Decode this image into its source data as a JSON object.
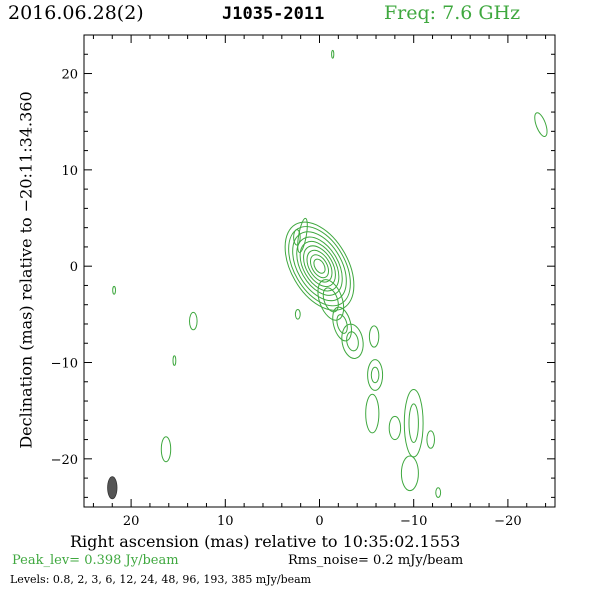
{
  "header": {
    "date": "2016.06.28(2)",
    "source": "J1035-2011",
    "frequency": "Freq: 7.6 GHz"
  },
  "footer": {
    "peak": "Peak_lev=  0.398 Jy/beam",
    "rms": "Rms_noise=  0.2 mJy/beam",
    "levels": "Levels: 0.8,   2,   3,   6,  12,  24,  48,  96, 193, 385 mJy/beam"
  },
  "colors": {
    "contour": "#3fa83f",
    "beam": "#555555",
    "text": "#000000"
  },
  "chart_data": {
    "type": "contour",
    "xlabel": "Right ascension (mas) relative to 10:35:02.1553",
    "ylabel": "Declination (mas) relative to −20:11:34.360",
    "xlim": [
      25,
      -25
    ],
    "ylim": [
      -25,
      24
    ],
    "xticks": [
      20,
      10,
      0,
      -10,
      -20
    ],
    "xtick_labels": [
      "20",
      "10",
      "0",
      "−10",
      "−20"
    ],
    "yticks": [
      20,
      10,
      0,
      -10,
      -20
    ],
    "ytick_labels": [
      "20",
      "10",
      "0",
      "−10",
      "−20"
    ],
    "grid": false,
    "peak_jy_per_beam": 0.398,
    "rms_mjy_per_beam": 0.2,
    "contour_levels_mjy_per_beam": [
      0.8,
      2,
      3,
      6,
      12,
      24,
      48,
      96,
      193,
      385
    ],
    "beam": {
      "x": 22,
      "y": -23,
      "major_mas": 2.3,
      "minor_mas": 1.0
    },
    "core": {
      "x": 0,
      "y": 0,
      "rx": [
        0.5,
        0.8,
        1.1,
        1.4,
        1.7,
        2.0,
        2.35,
        2.7,
        3.0
      ],
      "ry": [
        0.8,
        1.3,
        1.8,
        2.3,
        2.8,
        3.3,
        3.9,
        4.5,
        5.0
      ],
      "angle_deg": 30
    },
    "components": [
      {
        "x": 1.8,
        "y": 3.2,
        "rx": 0.4,
        "ry": 1.8,
        "angle_deg": -10
      },
      {
        "x": 2.3,
        "y": -5.0,
        "rx": 0.25,
        "ry": 0.5,
        "angle_deg": 0
      },
      {
        "x": -1.2,
        "y": -3.5,
        "rx": 1.2,
        "ry": 2.2,
        "angle_deg": 20
      },
      {
        "x": -1.2,
        "y": -3.5,
        "rx": 0.7,
        "ry": 1.3,
        "angle_deg": 20
      },
      {
        "x": -2.4,
        "y": -6.0,
        "rx": 0.9,
        "ry": 1.8,
        "angle_deg": 15
      },
      {
        "x": -2.4,
        "y": -6.0,
        "rx": 0.5,
        "ry": 1.0,
        "angle_deg": 15
      },
      {
        "x": -3.5,
        "y": -7.8,
        "rx": 1.1,
        "ry": 1.8,
        "angle_deg": 10
      },
      {
        "x": -3.5,
        "y": -7.8,
        "rx": 0.6,
        "ry": 1.0,
        "angle_deg": 10
      },
      {
        "x": -5.8,
        "y": -7.3,
        "rx": 0.5,
        "ry": 1.1,
        "angle_deg": 0
      },
      {
        "x": -5.9,
        "y": -11.3,
        "rx": 0.8,
        "ry": 1.6,
        "angle_deg": 0
      },
      {
        "x": -5.9,
        "y": -11.3,
        "rx": 0.4,
        "ry": 0.8,
        "angle_deg": 0
      },
      {
        "x": -5.6,
        "y": -15.3,
        "rx": 0.7,
        "ry": 2.0,
        "angle_deg": 0
      },
      {
        "x": -8.0,
        "y": -16.8,
        "rx": 0.6,
        "ry": 1.2,
        "angle_deg": 0
      },
      {
        "x": -10.0,
        "y": -16.3,
        "rx": 1.0,
        "ry": 3.5,
        "angle_deg": 0
      },
      {
        "x": -10.0,
        "y": -16.3,
        "rx": 0.5,
        "ry": 2.0,
        "angle_deg": 0
      },
      {
        "x": -9.6,
        "y": -21.5,
        "rx": 0.9,
        "ry": 1.8,
        "angle_deg": 0
      },
      {
        "x": -11.8,
        "y": -18.0,
        "rx": 0.4,
        "ry": 0.9,
        "angle_deg": 0
      },
      {
        "x": -12.6,
        "y": -23.5,
        "rx": 0.25,
        "ry": 0.5,
        "angle_deg": 0
      },
      {
        "x": 2.4,
        "y": 3.0,
        "rx": 0.35,
        "ry": 0.8,
        "angle_deg": 0
      },
      {
        "x": 13.4,
        "y": -5.7,
        "rx": 0.4,
        "ry": 0.9,
        "angle_deg": 0
      },
      {
        "x": 15.4,
        "y": -9.8,
        "rx": 0.15,
        "ry": 0.5,
        "angle_deg": 0
      },
      {
        "x": 16.3,
        "y": -19.0,
        "rx": 0.5,
        "ry": 1.3,
        "angle_deg": 0
      },
      {
        "x": 21.8,
        "y": -2.5,
        "rx": 0.15,
        "ry": 0.4,
        "angle_deg": 0
      },
      {
        "x": -1.4,
        "y": 22.0,
        "rx": 0.12,
        "ry": 0.4,
        "angle_deg": 0
      },
      {
        "x": -23.5,
        "y": 14.7,
        "rx": 0.5,
        "ry": 1.3,
        "angle_deg": 20
      }
    ]
  }
}
